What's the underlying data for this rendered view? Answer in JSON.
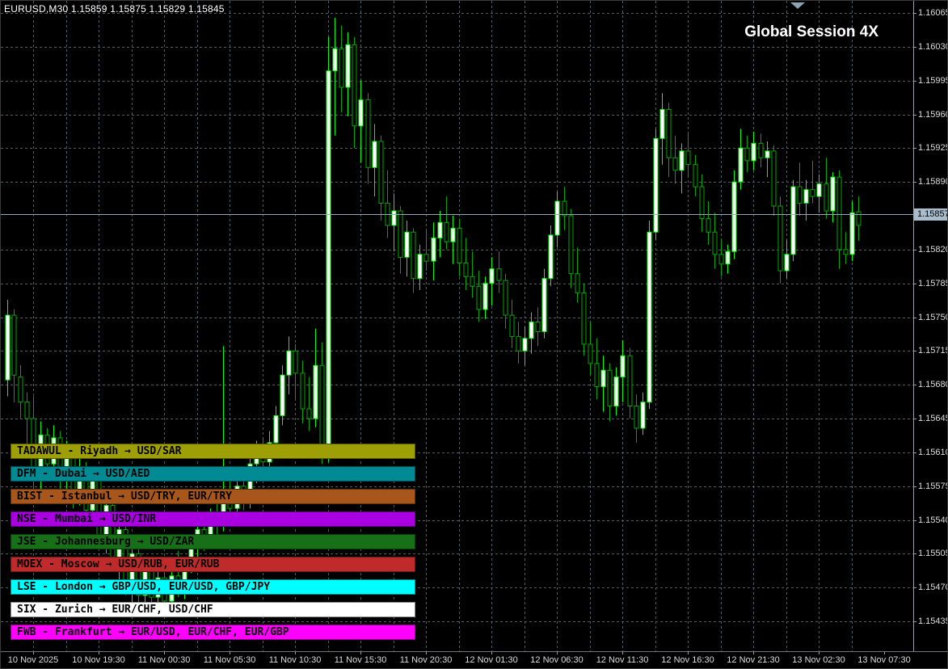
{
  "chart": {
    "info_line": "EURUSD,M30 1.15859 1.15875 1.15829 1.15845",
    "watermark": "Global Session 4X"
  },
  "sessions": [
    {
      "code": "tadawul",
      "label": "TADAWUL - Riyadh → USD/SAR",
      "color": "#9e9e06"
    },
    {
      "code": "dfm",
      "label": "DFM - Dubai → USD/AED",
      "color": "#008b94"
    },
    {
      "code": "bist",
      "label": "BIST - Istanbul → USD/TRY, EUR/TRY",
      "color": "#a8571c"
    },
    {
      "code": "nse",
      "label": "NSE - Mumbai → USD/INR",
      "color": "#a800e0"
    },
    {
      "code": "jse",
      "label": "JSE - Johannesburg → USD/ZAR",
      "color": "#176f17"
    },
    {
      "code": "moex",
      "label": "MOEX - Moscow → USD/RUB, EUR/RUB",
      "color": "#bf2b2b"
    },
    {
      "code": "lse",
      "label": "LSE - London → GBP/USD, EUR/USD, GBP/JPY",
      "color": "#00ffff"
    },
    {
      "code": "six",
      "label": "SIX - Zurich → EUR/CHF, USD/CHF",
      "color": "#ffffff"
    },
    {
      "code": "fwb",
      "label": "FWB - Frankfurt → EUR/USD, EUR/CHF, EUR/GBP",
      "color": "#ff00ff"
    }
  ],
  "chart_data": {
    "type": "candlestick",
    "symbol": "EURUSD",
    "timeframe": "M30",
    "title": "Global Session 4X",
    "last_bar": {
      "open": 1.15859,
      "high": 1.15875,
      "low": 1.15829,
      "close": 1.15845
    },
    "bid": 1.15857,
    "bid_display": "1.15857",
    "y_axis": {
      "max": 1.16065,
      "min": 1.15435,
      "step": 0.00035,
      "hidden_label": 1.15855
    },
    "price_labels": [
      "1.16065",
      "1.16030",
      "1.15995",
      "1.15960",
      "1.15925",
      "1.15890",
      "1.15820",
      "1.15785",
      "1.15750",
      "1.15715",
      "1.15680",
      "1.15645",
      "1.15610",
      "1.15575",
      "1.15540",
      "1.15505",
      "1.15470",
      "1.15435"
    ],
    "time_labels": [
      "10 Nov 2025",
      "10 Nov 19:30",
      "11 Nov 00:30",
      "11 Nov 05:30",
      "11 Nov 10:30",
      "11 Nov 15:30",
      "11 Nov 20:30",
      "12 Nov 01:30",
      "12 Nov 06:30",
      "12 Nov 11:30",
      "12 Nov 16:30",
      "12 Nov 21:30",
      "13 Nov 02:30",
      "13 Nov 07:30"
    ],
    "start_time": "10 Nov 2025 12:30",
    "interval_minutes": 30,
    "candles": [
      [
        1.15685,
        1.15768,
        1.15668,
        1.15752
      ],
      [
        1.15752,
        1.15758,
        1.15662,
        1.1569
      ],
      [
        1.15688,
        1.157,
        1.15645,
        1.15662
      ],
      [
        1.15662,
        1.15672,
        1.15608,
        1.15645
      ],
      [
        1.15645,
        1.15668,
        1.15558,
        1.1559
      ],
      [
        1.1559,
        1.15642,
        1.15572,
        1.15628
      ],
      [
        1.15628,
        1.15635,
        1.15585,
        1.15598
      ],
      [
        1.15598,
        1.15638,
        1.15588,
        1.15625
      ],
      [
        1.15625,
        1.15632,
        1.15568,
        1.15582
      ],
      [
        1.15582,
        1.15622,
        1.15572,
        1.15608
      ],
      [
        1.15608,
        1.15615,
        1.15552,
        1.15565
      ],
      [
        1.15565,
        1.15605,
        1.15555,
        1.15592
      ],
      [
        1.15592,
        1.156,
        1.15538,
        1.1555
      ],
      [
        1.1555,
        1.15595,
        1.1554,
        1.15582
      ],
      [
        1.15582,
        1.15588,
        1.15512,
        1.15525
      ],
      [
        1.15525,
        1.15568,
        1.15505,
        1.15555
      ],
      [
        1.15555,
        1.15562,
        1.15488,
        1.155
      ],
      [
        1.155,
        1.15542,
        1.15478,
        1.1553
      ],
      [
        1.1553,
        1.15535,
        1.15462,
        1.15478
      ],
      [
        1.15478,
        1.15518,
        1.15455,
        1.15505
      ],
      [
        1.15505,
        1.15512,
        1.15448,
        1.15462
      ],
      [
        1.15462,
        1.155,
        1.1545,
        1.1549
      ],
      [
        1.1549,
        1.15495,
        1.15446,
        1.1546
      ],
      [
        1.1546,
        1.15492,
        1.15444,
        1.1548
      ],
      [
        1.1548,
        1.15486,
        1.15444,
        1.15456
      ],
      [
        1.15456,
        1.1549,
        1.15448,
        1.15482
      ],
      [
        1.15482,
        1.15508,
        1.1546,
        1.15472
      ],
      [
        1.15472,
        1.15502,
        1.15458,
        1.15495
      ],
      [
        1.15495,
        1.15522,
        1.15485,
        1.15512
      ],
      [
        1.15512,
        1.1554,
        1.15498,
        1.1553
      ],
      [
        1.1553,
        1.15545,
        1.15508,
        1.15518
      ],
      [
        1.15518,
        1.15552,
        1.15512,
        1.15542
      ],
      [
        1.15542,
        1.15558,
        1.15522,
        1.15535
      ],
      [
        1.15535,
        1.1572,
        1.15528,
        1.1556
      ],
      [
        1.1556,
        1.15588,
        1.15542,
        1.15552
      ],
      [
        1.15552,
        1.15585,
        1.15538,
        1.15575
      ],
      [
        1.15575,
        1.15582,
        1.1555,
        1.1556
      ],
      [
        1.1556,
        1.15608,
        1.15552,
        1.15598
      ],
      [
        1.15598,
        1.15622,
        1.15578,
        1.15612
      ],
      [
        1.15612,
        1.15625,
        1.15588,
        1.156
      ],
      [
        1.156,
        1.15632,
        1.1559,
        1.1562
      ],
      [
        1.1562,
        1.15658,
        1.1561,
        1.15648
      ],
      [
        1.15648,
        1.157,
        1.15638,
        1.1569
      ],
      [
        1.1569,
        1.1573,
        1.1567,
        1.15715
      ],
      [
        1.15715,
        1.15722,
        1.15665,
        1.15692
      ],
      [
        1.15692,
        1.15705,
        1.1564,
        1.15655
      ],
      [
        1.15655,
        1.15688,
        1.15632,
        1.15645
      ],
      [
        1.15645,
        1.15738,
        1.15636,
        1.157
      ],
      [
        1.157,
        1.15724,
        1.15598,
        1.15615
      ],
      [
        1.15615,
        1.1604,
        1.156,
        1.16005
      ],
      [
        1.16005,
        1.1606,
        1.15938,
        1.16028
      ],
      [
        1.16028,
        1.16052,
        1.15962,
        1.15988
      ],
      [
        1.15988,
        1.16045,
        1.15958,
        1.16032
      ],
      [
        1.16032,
        1.1604,
        1.15925,
        1.15948
      ],
      [
        1.15948,
        1.15995,
        1.1591,
        1.15975
      ],
      [
        1.15975,
        1.15982,
        1.15888,
        1.15905
      ],
      [
        1.15905,
        1.1595,
        1.15875,
        1.15932
      ],
      [
        1.15932,
        1.15938,
        1.1585,
        1.15868
      ],
      [
        1.15868,
        1.15902,
        1.15832,
        1.15845
      ],
      [
        1.15845,
        1.15878,
        1.15818,
        1.1586
      ],
      [
        1.1586,
        1.15865,
        1.15795,
        1.15812
      ],
      [
        1.15812,
        1.1585,
        1.15792,
        1.15838
      ],
      [
        1.15838,
        1.15842,
        1.15775,
        1.1579
      ],
      [
        1.1579,
        1.15825,
        1.15778,
        1.15815
      ],
      [
        1.15815,
        1.1584,
        1.15798,
        1.15808
      ],
      [
        1.15808,
        1.15848,
        1.15788,
        1.15832
      ],
      [
        1.15832,
        1.1586,
        1.15812,
        1.15848
      ],
      [
        1.15848,
        1.15875,
        1.1582,
        1.15828
      ],
      [
        1.15828,
        1.15855,
        1.15805,
        1.15842
      ],
      [
        1.15842,
        1.15852,
        1.15792,
        1.15806
      ],
      [
        1.15806,
        1.15832,
        1.15778,
        1.15792
      ],
      [
        1.15792,
        1.15818,
        1.1577,
        1.15782
      ],
      [
        1.15782,
        1.15798,
        1.15745,
        1.15758
      ],
      [
        1.15758,
        1.15792,
        1.15748,
        1.15785
      ],
      [
        1.15785,
        1.15812,
        1.15762,
        1.158
      ],
      [
        1.158,
        1.15818,
        1.15775,
        1.15788
      ],
      [
        1.15788,
        1.15795,
        1.15738,
        1.15752
      ],
      [
        1.15752,
        1.15768,
        1.15718,
        1.1573
      ],
      [
        1.1573,
        1.15745,
        1.15702,
        1.15715
      ],
      [
        1.15715,
        1.1574,
        1.157,
        1.15728
      ],
      [
        1.15728,
        1.15755,
        1.15712,
        1.15745
      ],
      [
        1.15745,
        1.1576,
        1.1572,
        1.15735
      ],
      [
        1.15735,
        1.158,
        1.15728,
        1.1579
      ],
      [
        1.1579,
        1.15845,
        1.15782,
        1.15835
      ],
      [
        1.15835,
        1.1588,
        1.15822,
        1.1587
      ],
      [
        1.1587,
        1.15885,
        1.1584,
        1.15855
      ],
      [
        1.15855,
        1.15862,
        1.1578,
        1.15795
      ],
      [
        1.15795,
        1.15822,
        1.15765,
        1.15775
      ],
      [
        1.15775,
        1.15785,
        1.1571,
        1.15722
      ],
      [
        1.15722,
        1.15745,
        1.1569,
        1.15702
      ],
      [
        1.15702,
        1.15728,
        1.15665,
        1.15678
      ],
      [
        1.15678,
        1.1571,
        1.15652,
        1.15695
      ],
      [
        1.15695,
        1.15702,
        1.15642,
        1.15658
      ],
      [
        1.15658,
        1.15698,
        1.15648,
        1.15688
      ],
      [
        1.15688,
        1.15726,
        1.15662,
        1.1571
      ],
      [
        1.1571,
        1.15718,
        1.15645,
        1.15658
      ],
      [
        1.15658,
        1.1567,
        1.1562,
        1.15635
      ],
      [
        1.15635,
        1.15672,
        1.15628,
        1.15662
      ],
      [
        1.15662,
        1.1585,
        1.15655,
        1.15838
      ],
      [
        1.15838,
        1.15945,
        1.1583,
        1.15935
      ],
      [
        1.15935,
        1.15982,
        1.15908,
        1.15965
      ],
      [
        1.15965,
        1.15972,
        1.15895,
        1.15915
      ],
      [
        1.15915,
        1.15938,
        1.15888,
        1.15902
      ],
      [
        1.15902,
        1.1593,
        1.15878,
        1.15922
      ],
      [
        1.15922,
        1.1594,
        1.15895,
        1.15908
      ],
      [
        1.15908,
        1.15918,
        1.15875,
        1.15885
      ],
      [
        1.15885,
        1.15898,
        1.15838,
        1.15852
      ],
      [
        1.15852,
        1.1587,
        1.15825,
        1.15838
      ],
      [
        1.15838,
        1.15858,
        1.158,
        1.15815
      ],
      [
        1.15815,
        1.1583,
        1.15792,
        1.15805
      ],
      [
        1.15805,
        1.15825,
        1.15795,
        1.15818
      ],
      [
        1.15818,
        1.15902,
        1.1581,
        1.1589
      ],
      [
        1.1589,
        1.15945,
        1.15882,
        1.15925
      ],
      [
        1.15925,
        1.15938,
        1.159,
        1.15912
      ],
      [
        1.15912,
        1.15942,
        1.15902,
        1.1593
      ],
      [
        1.1593,
        1.1594,
        1.15905,
        1.15915
      ],
      [
        1.15915,
        1.15932,
        1.15895,
        1.15922
      ],
      [
        1.15922,
        1.15928,
        1.15855,
        1.15865
      ],
      [
        1.15865,
        1.15875,
        1.15785,
        1.15798
      ],
      [
        1.15798,
        1.1583,
        1.1579,
        1.15815
      ],
      [
        1.15815,
        1.15892,
        1.15808,
        1.15885
      ],
      [
        1.15885,
        1.1591,
        1.15855,
        1.15868
      ],
      [
        1.15868,
        1.15892,
        1.1585,
        1.15882
      ],
      [
        1.15882,
        1.15912,
        1.15868,
        1.15875
      ],
      [
        1.15875,
        1.15898,
        1.15858,
        1.15888
      ],
      [
        1.15888,
        1.15915,
        1.15852,
        1.1586
      ],
      [
        1.1586,
        1.159,
        1.15848,
        1.15895
      ],
      [
        1.15895,
        1.15902,
        1.158,
        1.1582
      ],
      [
        1.1582,
        1.15838,
        1.15805,
        1.15815
      ],
      [
        1.15815,
        1.1587,
        1.15808,
        1.15858
      ],
      [
        1.15859,
        1.15875,
        1.15829,
        1.15845
      ]
    ],
    "colors": {
      "background": "#000000",
      "grid": "#4e5d66",
      "bull_body": "#ffffff",
      "bull_outline": "#00ff00",
      "bear_body": "#000000",
      "bear_outline": "#00a800",
      "bid_line": "#94a8b8",
      "bid_tag_bg": "#a9bccb"
    },
    "legend_position": "none",
    "grid": true
  }
}
